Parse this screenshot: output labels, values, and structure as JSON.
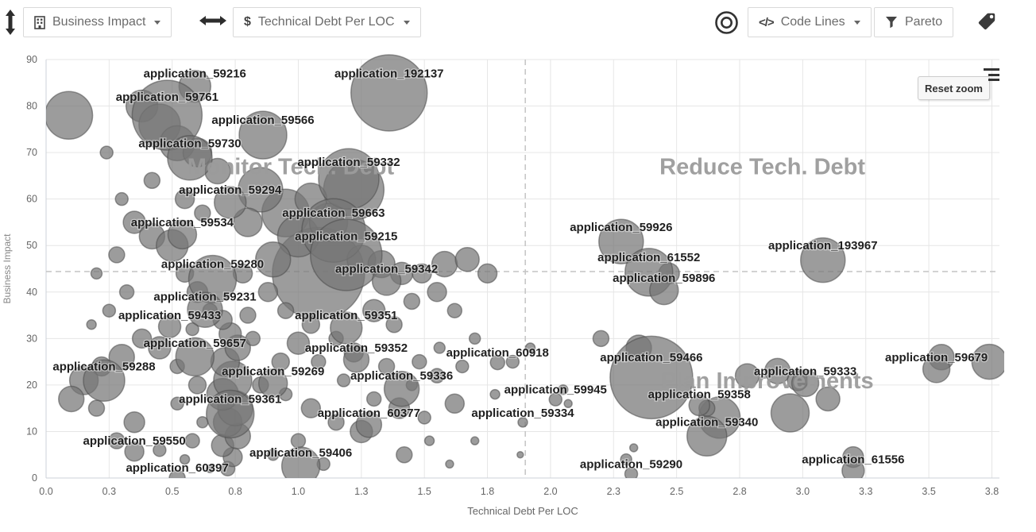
{
  "toolbar": {
    "y_selector": {
      "label": "Business Impact"
    },
    "x_selector": {
      "prefix": "$",
      "label": "Technical Debt Per LOC"
    },
    "size_selector": {
      "icon_glyph": "</>",
      "label": "Code Lines"
    },
    "pareto_button": {
      "label": "Pareto"
    }
  },
  "chart": {
    "reset_zoom_label": "Reset zoom"
  },
  "chart_data": {
    "type": "scatter",
    "subtype": "bubble",
    "xlabel": "Technical Debt Per LOC",
    "ylabel": "Business Impact",
    "xlim": [
      0,
      3.78
    ],
    "ylim": [
      0,
      90
    ],
    "x_tick_values": [
      0,
      0.25,
      0.5,
      0.75,
      1.0,
      1.25,
      1.5,
      1.75,
      2.0,
      2.25,
      2.5,
      2.75,
      3.0,
      3.25,
      3.5,
      3.75
    ],
    "x_tick_labels": [
      "0.0",
      "0.3",
      "0.5",
      "0.8",
      "1.0",
      "1.3",
      "1.5",
      "1.8",
      "2.0",
      "2.3",
      "2.5",
      "2.8",
      "3.0",
      "3.3",
      "3.5",
      "3.8"
    ],
    "y_tick_values": [
      0,
      10,
      20,
      30,
      40,
      50,
      60,
      70,
      80,
      90
    ],
    "grid": true,
    "quadrant_lines": {
      "x": 1.9,
      "y": 44.4
    },
    "quadrant_labels": [
      {
        "label": "Monitor Tech. Debt",
        "x": 0.97,
        "y": 67
      },
      {
        "label": "Reduce Tech. Debt",
        "x": 2.84,
        "y": 67
      },
      {
        "label": "Plan Improvements",
        "x": 2.86,
        "y": 21
      }
    ],
    "labeled_points": [
      {
        "name": "application_59216",
        "x": 0.59,
        "y": 87,
        "r": 20
      },
      {
        "name": "application_192137",
        "x": 1.36,
        "y": 87,
        "r": 48
      },
      {
        "name": "application_59761",
        "x": 0.48,
        "y": 82,
        "r": 44
      },
      {
        "name": "application_59566",
        "x": 0.86,
        "y": 77,
        "r": 30
      },
      {
        "name": "application_59730",
        "x": 0.57,
        "y": 72,
        "r": 28
      },
      {
        "name": "application_59332",
        "x": 1.2,
        "y": 68,
        "r": 38
      },
      {
        "name": "application_59294",
        "x": 0.73,
        "y": 62,
        "r": 20
      },
      {
        "name": "application_59663",
        "x": 1.14,
        "y": 57,
        "r": 40
      },
      {
        "name": "application_59534",
        "x": 0.54,
        "y": 55,
        "r": 18
      },
      {
        "name": "application_59215",
        "x": 1.19,
        "y": 52,
        "r": 45
      },
      {
        "name": "application_59280",
        "x": 0.66,
        "y": 46,
        "r": 30
      },
      {
        "name": "application_59342",
        "x": 1.35,
        "y": 45,
        "r": 18
      },
      {
        "name": "application_59231",
        "x": 0.63,
        "y": 39,
        "r": 22
      },
      {
        "name": "application_59433",
        "x": 0.49,
        "y": 35,
        "r": 14
      },
      {
        "name": "application_59351",
        "x": 1.19,
        "y": 35,
        "r": 20
      },
      {
        "name": "application_59657",
        "x": 0.59,
        "y": 29,
        "r": 24
      },
      {
        "name": "application_59352",
        "x": 1.23,
        "y": 28,
        "r": 16
      },
      {
        "name": "application_60918",
        "x": 1.79,
        "y": 27,
        "r": 9
      },
      {
        "name": "application_59288",
        "x": 0.23,
        "y": 24,
        "r": 26
      },
      {
        "name": "application_59269",
        "x": 0.9,
        "y": 23,
        "r": 18
      },
      {
        "name": "application_59336",
        "x": 1.41,
        "y": 22,
        "r": 22
      },
      {
        "name": "application_59361",
        "x": 0.73,
        "y": 17,
        "r": 30
      },
      {
        "name": "application_60377",
        "x": 1.28,
        "y": 14,
        "r": 16
      },
      {
        "name": "application_59550",
        "x": 0.35,
        "y": 8,
        "r": 12
      },
      {
        "name": "application_59406",
        "x": 1.01,
        "y": 5.5,
        "r": 24
      },
      {
        "name": "application_60397",
        "x": 0.52,
        "y": 2.2,
        "r": 10
      },
      {
        "name": "application_59926",
        "x": 2.28,
        "y": 54,
        "r": 28
      },
      {
        "name": "application_61552",
        "x": 2.39,
        "y": 47.5,
        "r": 30
      },
      {
        "name": "application_59896",
        "x": 2.45,
        "y": 43,
        "r": 18
      },
      {
        "name": "application_193967",
        "x": 3.08,
        "y": 50,
        "r": 28
      },
      {
        "name": "application_59466",
        "x": 2.4,
        "y": 26,
        "r": 52
      },
      {
        "name": "application_59945",
        "x": 2.02,
        "y": 19,
        "r": 8
      },
      {
        "name": "application_59358",
        "x": 2.59,
        "y": 18,
        "r": 13
      },
      {
        "name": "application_59334",
        "x": 1.89,
        "y": 14,
        "r": 6
      },
      {
        "name": "application_59340",
        "x": 2.62,
        "y": 12,
        "r": 25
      },
      {
        "name": "application_59333",
        "x": 3.01,
        "y": 23,
        "r": 17
      },
      {
        "name": "application_59679",
        "x": 3.53,
        "y": 26,
        "r": 17
      },
      {
        "name": "application_59290",
        "x": 2.32,
        "y": 3,
        "r": 8
      },
      {
        "name": "application_61556",
        "x": 3.2,
        "y": 4,
        "r": 14
      }
    ],
    "background_points": [
      [
        0.72,
        2,
        9
      ],
      [
        0.74,
        4.5,
        12
      ],
      [
        0.7,
        7,
        14
      ],
      [
        0.76,
        9,
        16
      ],
      [
        0.72,
        12,
        18
      ],
      [
        0.75,
        15,
        22
      ],
      [
        0.7,
        18,
        20
      ],
      [
        0.74,
        21,
        24
      ],
      [
        0.71,
        25,
        18
      ],
      [
        0.76,
        28,
        16
      ],
      [
        0.73,
        31,
        14
      ],
      [
        0.7,
        34,
        12
      ],
      [
        1.08,
        44,
        58
      ],
      [
        1.22,
        62,
        38
      ],
      [
        0.95,
        57,
        30
      ],
      [
        0.85,
        62,
        28
      ],
      [
        1.0,
        52,
        26
      ],
      [
        1.12,
        55,
        24
      ],
      [
        0.9,
        47,
        22
      ],
      [
        1.05,
        60,
        20
      ],
      [
        0.8,
        55,
        18
      ],
      [
        1.25,
        47,
        18
      ],
      [
        1.33,
        46,
        17
      ],
      [
        1.41,
        44,
        14
      ],
      [
        1.49,
        44,
        12
      ],
      [
        1.58,
        46,
        16
      ],
      [
        1.67,
        47,
        15
      ],
      [
        1.75,
        44,
        12
      ],
      [
        1.55,
        40,
        12
      ],
      [
        1.45,
        38,
        10
      ],
      [
        1.3,
        36,
        14
      ],
      [
        1.38,
        33,
        10
      ],
      [
        1.62,
        36,
        9
      ],
      [
        0.09,
        78,
        30
      ],
      [
        0.24,
        70,
        8
      ],
      [
        0.38,
        80,
        20
      ],
      [
        0.45,
        76,
        26
      ],
      [
        0.52,
        72,
        22
      ],
      [
        0.6,
        70,
        18
      ],
      [
        0.68,
        66,
        16
      ],
      [
        0.42,
        64,
        10
      ],
      [
        0.3,
        60,
        8
      ],
      [
        0.35,
        55,
        14
      ],
      [
        0.42,
        52,
        16
      ],
      [
        0.5,
        50,
        20
      ],
      [
        0.28,
        48,
        10
      ],
      [
        0.2,
        44,
        7
      ],
      [
        0.32,
        40,
        9
      ],
      [
        0.25,
        36,
        8
      ],
      [
        0.18,
        33,
        6
      ],
      [
        0.38,
        30,
        12
      ],
      [
        0.45,
        28,
        14
      ],
      [
        0.3,
        26,
        16
      ],
      [
        0.22,
        24,
        12
      ],
      [
        0.15,
        21,
        18
      ],
      [
        0.1,
        17,
        16
      ],
      [
        0.2,
        15,
        10
      ],
      [
        0.35,
        12,
        13
      ],
      [
        0.28,
        8,
        10
      ],
      [
        0.45,
        6,
        8
      ],
      [
        0.55,
        4,
        6
      ],
      [
        0.65,
        2,
        5
      ],
      [
        0.55,
        60,
        12
      ],
      [
        0.62,
        57,
        10
      ],
      [
        0.55,
        44,
        11
      ],
      [
        0.6,
        40,
        13
      ],
      [
        0.65,
        36,
        9
      ],
      [
        0.58,
        32,
        8
      ],
      [
        0.52,
        24,
        9
      ],
      [
        0.6,
        20,
        11
      ],
      [
        0.52,
        16,
        8
      ],
      [
        0.62,
        12,
        7
      ],
      [
        0.58,
        8,
        9
      ],
      [
        0.85,
        20,
        10
      ],
      [
        0.95,
        18,
        8
      ],
      [
        1.05,
        15,
        12
      ],
      [
        1.15,
        12,
        10
      ],
      [
        1.25,
        10,
        14
      ],
      [
        1.0,
        8,
        9
      ],
      [
        0.9,
        5,
        7
      ],
      [
        1.1,
        3,
        8
      ],
      [
        1.3,
        17,
        9
      ],
      [
        1.4,
        15,
        13
      ],
      [
        1.5,
        13,
        8
      ],
      [
        1.62,
        16,
        12
      ],
      [
        1.45,
        20,
        7
      ],
      [
        1.55,
        22,
        9
      ],
      [
        1.65,
        24,
        8
      ],
      [
        1.35,
        24,
        10
      ],
      [
        1.22,
        27,
        12
      ],
      [
        1.15,
        30,
        9
      ],
      [
        1.05,
        33,
        11
      ],
      [
        0.95,
        36,
        10
      ],
      [
        0.88,
        40,
        12
      ],
      [
        1.0,
        29,
        14
      ],
      [
        0.93,
        25,
        11
      ],
      [
        1.08,
        25,
        9
      ],
      [
        1.18,
        21,
        8
      ],
      [
        0.82,
        30,
        9
      ],
      [
        0.8,
        35,
        10
      ],
      [
        0.78,
        44,
        12
      ],
      [
        1.48,
        25,
        9
      ],
      [
        1.56,
        28,
        7
      ],
      [
        1.85,
        25,
        8
      ],
      [
        1.92,
        28,
        6
      ],
      [
        1.7,
        30,
        7
      ],
      [
        1.78,
        18,
        6
      ],
      [
        1.7,
        8,
        5
      ],
      [
        1.88,
        5,
        4
      ],
      [
        1.52,
        8,
        6
      ],
      [
        1.42,
        5,
        10
      ],
      [
        1.6,
        3,
        5
      ],
      [
        2.2,
        30,
        10
      ],
      [
        2.35,
        28,
        16
      ],
      [
        2.05,
        19,
        6
      ],
      [
        2.07,
        16,
        5
      ],
      [
        2.3,
        4,
        7
      ],
      [
        2.33,
        6.5,
        5
      ],
      [
        2.95,
        14,
        24
      ],
      [
        3.1,
        17,
        15
      ],
      [
        2.9,
        23,
        16
      ],
      [
        2.98,
        21,
        13
      ],
      [
        3.55,
        26,
        16
      ],
      [
        3.74,
        25,
        22
      ],
      [
        3.2,
        4.5,
        13
      ],
      [
        2.67,
        13,
        26
      ],
      [
        2.47,
        44,
        13
      ],
      [
        2.62,
        15,
        10
      ],
      [
        2.78,
        22,
        15
      ]
    ],
    "colors": {
      "bubble_fill": "#767676",
      "bubble_stroke": "#4a4a4a",
      "grid": "#e6e6e6",
      "axis_line": "#ccd2d9",
      "dashed": "#c4c4c4",
      "quadrant_label": "#9b9b9b",
      "point_label": "#1f1f1f",
      "tick_label": "#666666",
      "axis_title": "#666666"
    }
  }
}
